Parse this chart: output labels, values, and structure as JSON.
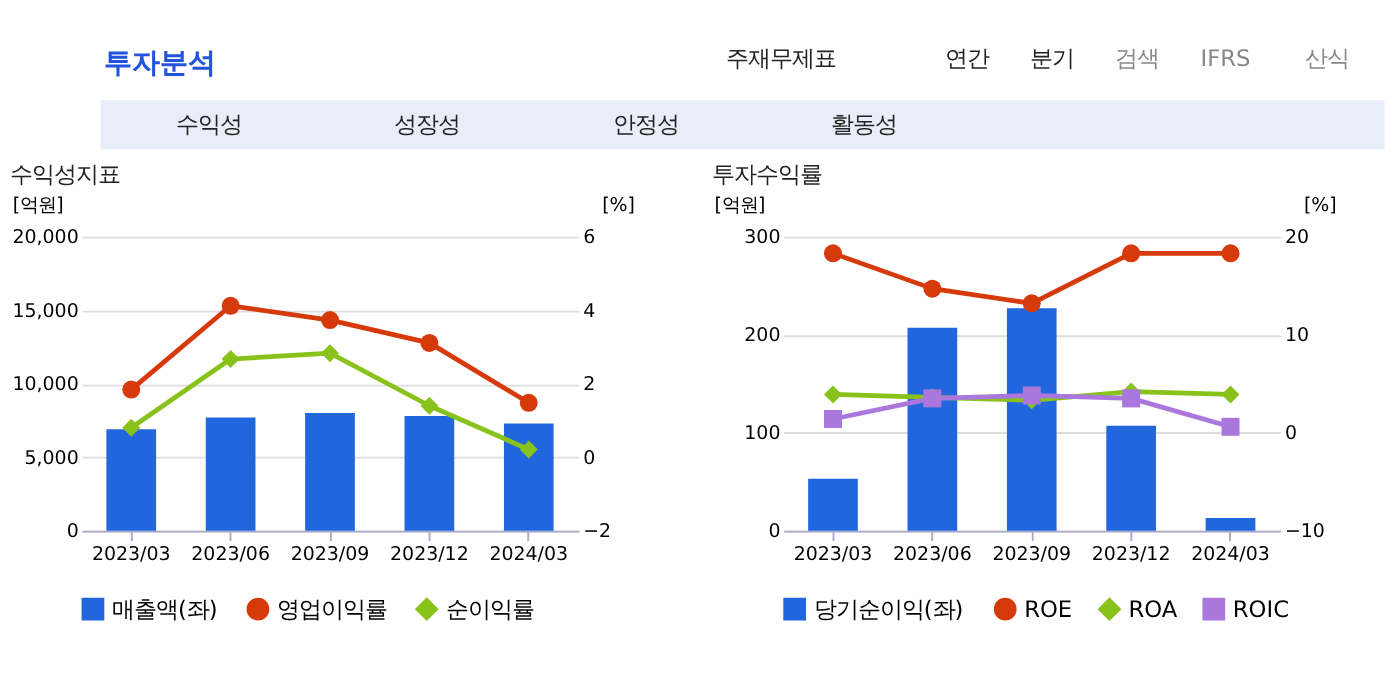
{
  "chart_data": [
    {
      "type": "other",
      "annotations": [
        "투자분석",
        "주재무제표",
        "연간",
        "분기",
        "검색",
        "IFRS",
        "산식",
        "수익성",
        "성장성",
        "안정성",
        "활동성"
      ]
    },
    {
      "type": "bar",
      "title": "수익성지표",
      "ylabel": "[억원]",
      "y2label": "[%]",
      "categories": [
        "2023/03",
        "2023/06",
        "2023/09",
        "2023/12",
        "2024/03"
      ],
      "ylim": [
        0,
        20000
      ],
      "yticks": [
        0,
        {
          "value": 5000,
          "label": "5,000"
        },
        {
          "value": 10000,
          "label": "10,000"
        },
        {
          "value": 15000,
          "label": "15,000"
        },
        {
          "value": 20000,
          "label": "20,000"
        }
      ],
      "y2lim": [
        -2,
        6
      ],
      "y2ticks": [
        -2,
        0,
        2,
        4,
        6
      ],
      "grid": "y",
      "legend": "bottom",
      "series": [
        {
          "name": "매출액(좌)",
          "type": "bar",
          "color": "#2266dd",
          "values": [
            6900,
            7700,
            8000,
            7800,
            7300
          ]
        },
        {
          "name": "영업이익률",
          "type": "line",
          "axis": "y2",
          "marker": "circle",
          "color": "#d63a0a",
          "values": [
            1.84,
            4.12,
            3.73,
            3.11,
            1.48
          ]
        },
        {
          "name": "순이익률",
          "type": "line",
          "axis": "y2",
          "marker": "diamond",
          "color": "#88c21a",
          "values": [
            0.8,
            2.67,
            2.83,
            1.4,
            0.21
          ]
        }
      ]
    },
    {
      "type": "bar",
      "title": "투자수익률",
      "ylabel": "[억원]",
      "y2label": "[%]",
      "categories": [
        "2023/03",
        "2023/06",
        "2023/09",
        "2023/12",
        "2024/03"
      ],
      "ylim": [
        0,
        300
      ],
      "yticks": [
        0,
        100,
        200,
        300
      ],
      "y2lim": [
        -10,
        20
      ],
      "y2ticks": [
        -10,
        0,
        10,
        20
      ],
      "grid": "y",
      "legend": "bottom",
      "series": [
        {
          "name": "당기순이익(좌)",
          "type": "bar",
          "color": "#2266dd",
          "values": [
            53,
            207,
            227,
            107,
            13
          ]
        },
        {
          "name": "ROE",
          "type": "line",
          "axis": "y2",
          "marker": "circle",
          "color": "#d63a0a",
          "values": [
            18.3,
            14.7,
            13.2,
            18.3,
            18.3
          ]
        },
        {
          "name": "ROA",
          "type": "line",
          "axis": "y2",
          "marker": "diamond",
          "color": "#88c21a",
          "values": [
            3.9,
            3.6,
            3.3,
            4.2,
            3.9
          ]
        },
        {
          "name": "ROIC",
          "type": "line",
          "axis": "y2",
          "marker": "square",
          "color": "#aa77dd",
          "values": [
            1.4,
            3.5,
            3.8,
            3.5,
            0.6
          ]
        }
      ]
    }
  ]
}
